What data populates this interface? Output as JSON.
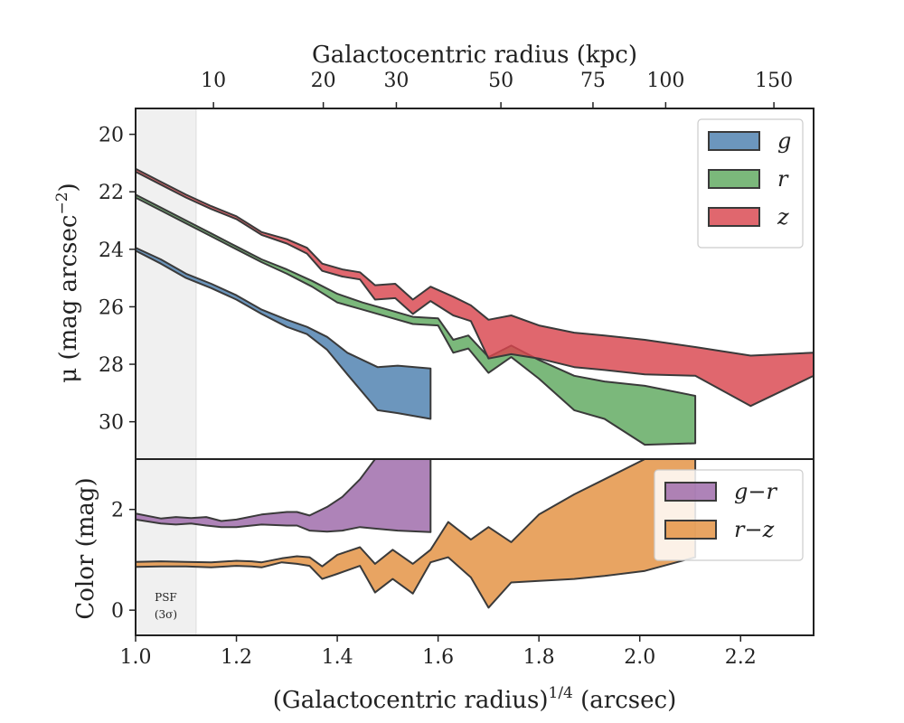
{
  "chart_data": {
    "type": "area",
    "x_axis": {
      "label_main": "(Galactocentric radius)",
      "label_sup": "1/4",
      "label_unit": " (arcsec)",
      "ticks": [
        1.0,
        1.2,
        1.4,
        1.6,
        1.8,
        2.0,
        2.2
      ],
      "tick_labels": [
        "1.0",
        "1.2",
        "1.4",
        "1.6",
        "1.8",
        "2.0",
        "2.2"
      ],
      "range": [
        1.0,
        2.3448
      ]
    },
    "top_axis": {
      "label": "Galactocentric radius (kpc)",
      "ticks": [
        {
          "label": "10",
          "x": 1.1545
        },
        {
          "label": "20",
          "x": 1.3723
        },
        {
          "label": "30",
          "x": 1.5172
        },
        {
          "label": "50",
          "x": 1.7246
        },
        {
          "label": "75",
          "x": 1.9072
        },
        {
          "label": "100",
          "x": 2.0514
        },
        {
          "label": "150",
          "x": 2.2661
        }
      ]
    },
    "psf": {
      "x_end": 1.12,
      "label_line1": "PSF",
      "label_line2": "(3σ)"
    },
    "panels": [
      {
        "id": "surface-brightness",
        "ylabel_main": "μ (mag arcsec",
        "ylabel_sup": "−2",
        "ylabel_close": ")",
        "ylim": [
          31.3,
          19.1
        ],
        "yticks": [
          20,
          22,
          24,
          26,
          28,
          30
        ],
        "ytick_labels": [
          "20",
          "22",
          "24",
          "26",
          "28",
          "30"
        ],
        "series": [
          {
            "name": "g",
            "color": "#4c7fae",
            "x": [
              1.0,
              1.05,
              1.1,
              1.15,
              1.2,
              1.25,
              1.3,
              1.34,
              1.38,
              1.42,
              1.48,
              1.52,
              1.585
            ],
            "lower": [
              23.95,
              24.35,
              24.85,
              25.2,
              25.6,
              26.1,
              26.45,
              26.7,
              27.05,
              27.6,
              28.1,
              28.05,
              28.15
            ],
            "upper": [
              24.05,
              24.5,
              25.0,
              25.35,
              25.75,
              26.25,
              26.7,
              26.95,
              27.5,
              28.35,
              29.6,
              29.7,
              29.9
            ]
          },
          {
            "name": "r",
            "color": "#5ea85e",
            "x": [
              1.0,
              1.05,
              1.1,
              1.15,
              1.2,
              1.25,
              1.3,
              1.35,
              1.4,
              1.45,
              1.5,
              1.55,
              1.6,
              1.63,
              1.66,
              1.7,
              1.745,
              1.8,
              1.87,
              1.93,
              2.01,
              2.11
            ],
            "lower": [
              22.1,
              22.55,
              23.0,
              23.45,
              23.9,
              24.35,
              24.7,
              25.1,
              25.55,
              25.85,
              26.1,
              26.35,
              26.4,
              27.15,
              27.0,
              27.75,
              27.35,
              27.85,
              28.4,
              28.6,
              28.75,
              29.1
            ],
            "upper": [
              22.2,
              22.65,
              23.1,
              23.55,
              24.0,
              24.45,
              24.85,
              25.3,
              25.85,
              26.1,
              26.35,
              26.6,
              26.65,
              27.6,
              27.45,
              28.3,
              27.75,
              28.5,
              29.6,
              29.9,
              30.8,
              30.75
            ]
          },
          {
            "name": "z",
            "color": "#d9454e",
            "x": [
              1.0,
              1.05,
              1.1,
              1.15,
              1.2,
              1.25,
              1.3,
              1.34,
              1.37,
              1.41,
              1.445,
              1.475,
              1.515,
              1.55,
              1.585,
              1.63,
              1.665,
              1.7,
              1.745,
              1.8,
              1.87,
              1.93,
              2.01,
              2.11,
              2.22,
              2.3448
            ],
            "lower": [
              21.2,
              21.65,
              22.1,
              22.5,
              22.85,
              23.4,
              23.65,
              23.95,
              24.5,
              24.7,
              24.8,
              25.25,
              25.2,
              25.75,
              25.3,
              25.65,
              25.95,
              26.45,
              26.3,
              26.65,
              26.9,
              27.0,
              27.15,
              27.4,
              27.7,
              27.6
            ],
            "upper": [
              21.3,
              21.75,
              22.2,
              22.6,
              22.95,
              23.5,
              23.8,
              24.15,
              24.75,
              24.95,
              25.05,
              25.75,
              25.7,
              26.25,
              25.8,
              26.3,
              26.5,
              27.8,
              27.65,
              27.8,
              28.1,
              28.2,
              28.35,
              28.4,
              29.45,
              28.4
            ]
          }
        ]
      },
      {
        "id": "color",
        "ylabel_main": "Color (mag)",
        "ylim": [
          -0.5,
          3.0
        ],
        "yticks": [
          0,
          2
        ],
        "ytick_labels": [
          "0",
          "2"
        ],
        "series": [
          {
            "name": "g−r",
            "color": "#9c68a8",
            "x": [
              1.0,
              1.05,
              1.08,
              1.11,
              1.14,
              1.17,
              1.2,
              1.25,
              1.3,
              1.32,
              1.345,
              1.38,
              1.41,
              1.445,
              1.475,
              1.52,
              1.585
            ],
            "lower": [
              1.8,
              1.72,
              1.7,
              1.72,
              1.68,
              1.65,
              1.65,
              1.7,
              1.68,
              1.68,
              1.58,
              1.56,
              1.58,
              1.65,
              1.62,
              1.58,
              1.55
            ],
            "upper": [
              1.92,
              1.82,
              1.85,
              1.83,
              1.85,
              1.77,
              1.8,
              1.9,
              1.95,
              1.95,
              1.88,
              2.05,
              2.25,
              2.6,
              3.0,
              3.0,
              3.0
            ]
          },
          {
            "name": "r−z",
            "color": "#e3903f",
            "x": [
              1.0,
              1.05,
              1.1,
              1.15,
              1.2,
              1.23,
              1.25,
              1.29,
              1.32,
              1.345,
              1.37,
              1.4,
              1.445,
              1.475,
              1.51,
              1.55,
              1.585,
              1.62,
              1.665,
              1.7,
              1.745,
              1.8,
              1.87,
              1.93,
              2.01,
              2.11
            ],
            "lower": [
              0.86,
              0.87,
              0.87,
              0.85,
              0.88,
              0.87,
              0.85,
              0.95,
              0.92,
              0.88,
              0.62,
              0.72,
              0.88,
              0.35,
              0.62,
              0.33,
              0.95,
              1.05,
              0.65,
              0.05,
              0.55,
              0.58,
              0.62,
              0.68,
              0.78,
              1.05
            ],
            "upper": [
              0.96,
              0.97,
              0.96,
              0.95,
              0.98,
              0.97,
              0.95,
              1.03,
              1.07,
              1.05,
              0.87,
              1.1,
              1.25,
              0.92,
              1.2,
              0.92,
              1.2,
              1.75,
              1.4,
              1.65,
              1.35,
              1.9,
              2.3,
              2.6,
              3.0,
              3.0
            ]
          }
        ]
      }
    ],
    "legend_placement": "top-right",
    "grid": false
  }
}
